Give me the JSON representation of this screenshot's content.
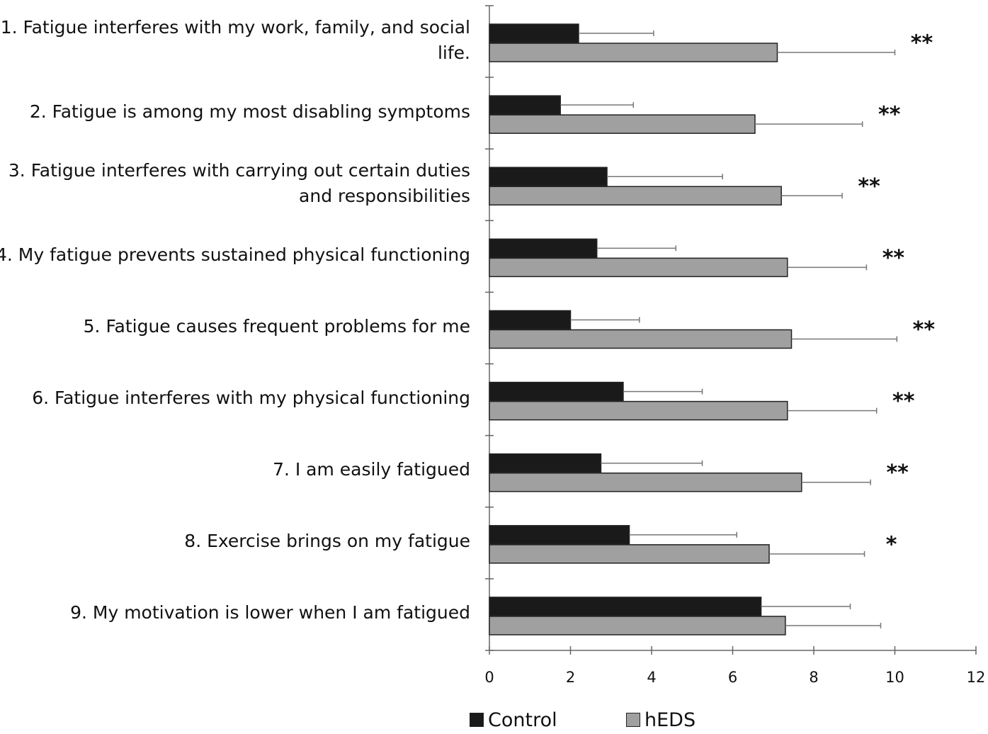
{
  "chart_data": {
    "type": "bar",
    "orientation": "horizontal",
    "categories": [
      "1. Fatigue interferes with my work, family, and social life.",
      "2. Fatigue is among my most disabling symptoms",
      "3. Fatigue interferes with carrying out certain duties and responsibilities",
      "4. My fatigue prevents sustained physical functioning",
      "5. Fatigue causes frequent problems for me",
      "6. Fatigue interferes with my physical functioning",
      "7. I am easily fatigued",
      "8. Exercise brings on my fatigue",
      "9. My motivation is lower when I am fatigued"
    ],
    "series": [
      {
        "name": "Control",
        "color": "#1a1a1a",
        "values": [
          2.2,
          1.75,
          2.9,
          2.65,
          2.0,
          3.3,
          2.75,
          3.45,
          6.7
        ],
        "errors": [
          1.85,
          1.8,
          2.85,
          1.95,
          1.7,
          1.95,
          2.5,
          2.65,
          2.2
        ]
      },
      {
        "name": "hEDS",
        "color": "#a0a0a0",
        "values": [
          7.1,
          6.55,
          7.2,
          7.35,
          7.45,
          7.35,
          7.7,
          6.9,
          7.3
        ],
        "errors": [
          2.9,
          2.65,
          1.5,
          1.95,
          2.6,
          2.2,
          1.7,
          2.35,
          2.35
        ]
      }
    ],
    "significance": [
      "**",
      "**",
      "**",
      "**",
      "**",
      "**",
      "**",
      "*",
      ""
    ],
    "xlim": [
      0,
      12
    ],
    "xticks": [
      "0",
      "2",
      "4",
      "6",
      "8",
      "10",
      "12"
    ],
    "xlabel": "",
    "ylabel": "",
    "title": "",
    "legend_position": "bottom",
    "grid": false
  }
}
